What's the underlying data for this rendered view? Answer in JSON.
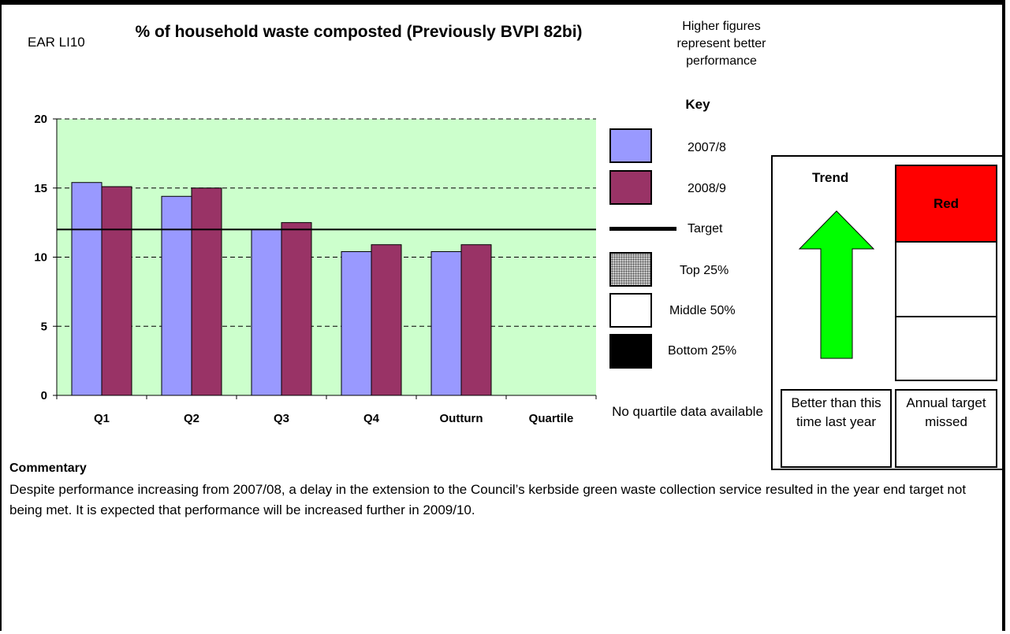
{
  "header": {
    "indicator_code": "EAR LI10",
    "title": "% of household waste composted (Previously BVPI 82bi)",
    "performance_note": "Higher figures represent better performance"
  },
  "chart_data": {
    "type": "bar",
    "categories": [
      "Q1",
      "Q2",
      "Q3",
      "Q4",
      "Outturn",
      "Quartile"
    ],
    "series": [
      {
        "name": "2007/8",
        "values": [
          15.4,
          14.4,
          12.0,
          10.4,
          10.4,
          null
        ],
        "color": "#9999ff"
      },
      {
        "name": "2008/9",
        "values": [
          15.1,
          15.0,
          12.5,
          10.9,
          10.9,
          null
        ],
        "color": "#993366"
      }
    ],
    "target": 12.0,
    "ylim": [
      0,
      20
    ],
    "yticks": [
      0,
      5,
      10,
      15,
      20
    ],
    "grid": true,
    "plot_background": "#ccffcc",
    "legend_placement": "right"
  },
  "key": {
    "heading": "Key",
    "items": [
      {
        "label": "2007/8",
        "color": "#9999ff"
      },
      {
        "label": "2008/9",
        "color": "#993366"
      },
      {
        "label": "Target"
      },
      {
        "label": "Top 25%"
      },
      {
        "label": "Middle 50%",
        "color": "#ffffff"
      },
      {
        "label": "Bottom 25%",
        "color": "#000000"
      }
    ],
    "no_quartile_note": "No quartile data available"
  },
  "status": {
    "trend_title": "Trend",
    "trend_icon": "up-arrow-icon",
    "trend_color": "#00ff00",
    "rag_label": "Red",
    "rag_color": "#ff0000",
    "trend_caption": "Better than this time last year",
    "target_caption": "Annual target missed"
  },
  "commentary": {
    "heading": "Commentary",
    "text": "Despite performance increasing from 2007/08, a delay in the extension to the Council’s kerbside green waste collection service resulted in the year end target not being met.  It is expected that performance will be increased further in 2009/10."
  }
}
